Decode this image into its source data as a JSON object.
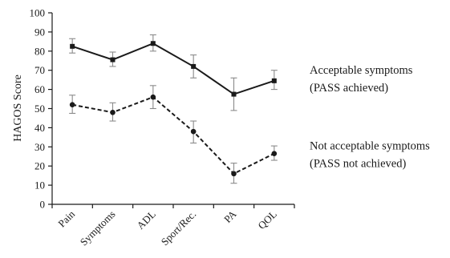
{
  "chart_data": {
    "type": "line",
    "title": "",
    "xlabel": "",
    "ylabel": "HAGOS Score",
    "ylim": [
      0,
      100
    ],
    "yticks": [
      0,
      10,
      20,
      30,
      40,
      50,
      60,
      70,
      80,
      90,
      100
    ],
    "categories": [
      "Pain",
      "Symptoms",
      "ADL",
      "Sport/Rec.",
      "PA",
      "QOL"
    ],
    "grid": false,
    "series": [
      {
        "style": "solid",
        "marker": "square",
        "color": "#1a1a1a",
        "values": [
          82.5,
          75.5,
          84,
          72,
          57.5,
          64.5
        ],
        "err_low": [
          79,
          72,
          80,
          66,
          49,
          60
        ],
        "err_high": [
          86.5,
          79.5,
          88.5,
          78,
          66,
          70
        ],
        "label_lines": [
          "Acceptable symptoms",
          "(PASS achieved)"
        ]
      },
      {
        "style": "dashed",
        "marker": "circle",
        "color": "#1a1a1a",
        "values": [
          52,
          48,
          56,
          38,
          16,
          26.5
        ],
        "err_low": [
          47.5,
          43.5,
          50,
          32,
          11,
          23
        ],
        "err_high": [
          57,
          53,
          62,
          43.5,
          21.5,
          30.5
        ],
        "label_lines": [
          "Not acceptable symptoms",
          "(PASS not achieved)"
        ]
      }
    ]
  }
}
